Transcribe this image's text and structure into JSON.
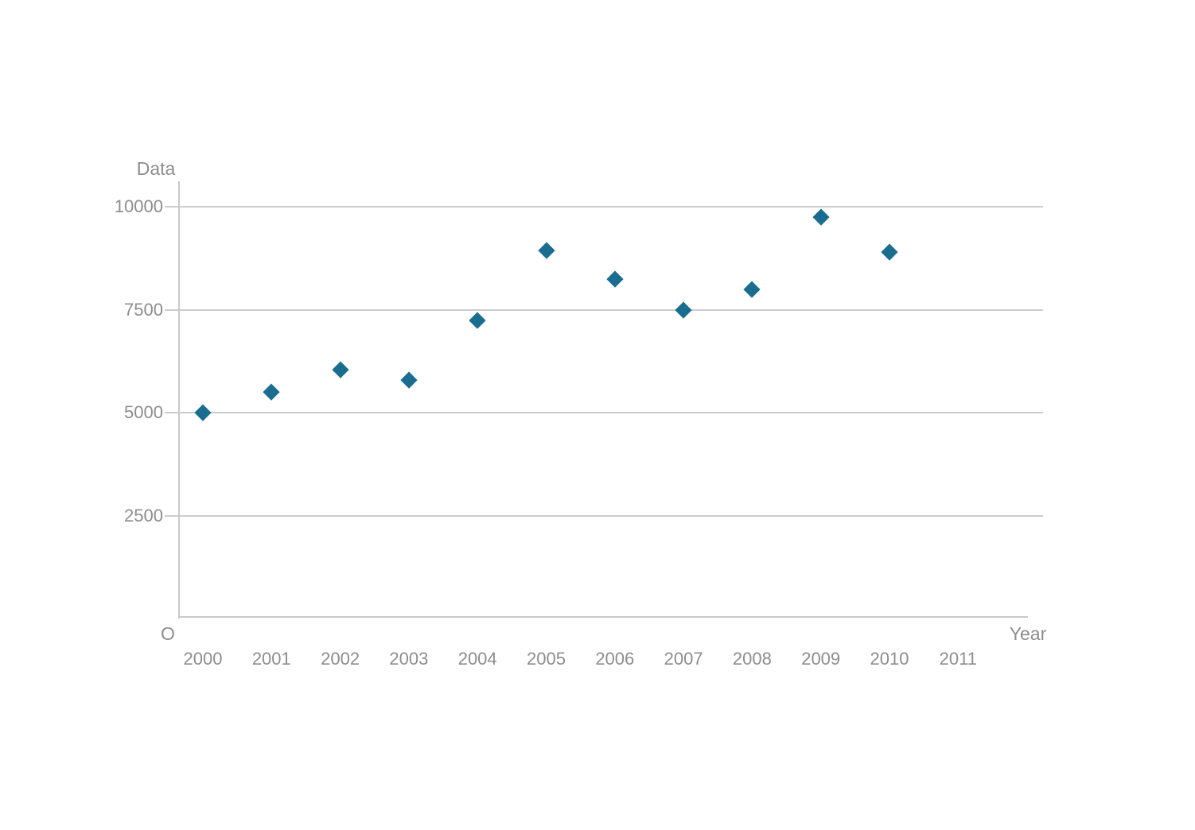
{
  "chart_data": {
    "type": "scatter",
    "title": "",
    "ylabel": "Data",
    "xlabel": "Year",
    "origin_label": "O",
    "x_tick_labels": [
      "2000",
      "2001",
      "2002",
      "2003",
      "2004",
      "2005",
      "2006",
      "2007",
      "2008",
      "2009",
      "2010",
      "2011"
    ],
    "y_tick_labels": [
      "10000",
      "7500",
      "5000",
      "2500"
    ],
    "y_tick_values": [
      10000,
      7500,
      5000,
      2500
    ],
    "xlim": [
      1999.65,
      2012.25
    ],
    "ylim": [
      0,
      10600
    ],
    "grid": "horizontal-only",
    "legend": "none",
    "marker_shape": "diamond",
    "marker_size_px": 21,
    "marker_color": "#1a6d8f",
    "grid_color": "#cccccc",
    "axis_color": "#c9c9c9",
    "text_color": "#8d8d8d",
    "background_color": "#ffffff",
    "series": [
      {
        "name": "Data",
        "x": [
          2000,
          2001,
          2002,
          2003,
          2004,
          2005,
          2006,
          2007,
          2008,
          2009,
          2010
        ],
        "y": [
          5000,
          5500,
          6050,
          5800,
          7250,
          8950,
          8250,
          7500,
          8000,
          9750,
          8900
        ]
      }
    ]
  }
}
